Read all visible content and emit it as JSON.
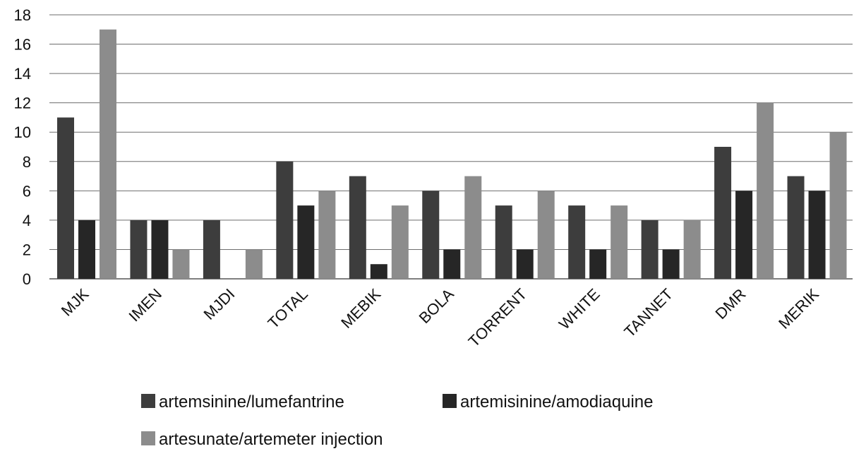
{
  "chart_data": {
    "type": "bar",
    "title": "",
    "xlabel": "",
    "ylabel": "",
    "ylim": [
      0,
      18
    ],
    "yticks": [
      0,
      2,
      4,
      6,
      8,
      10,
      12,
      14,
      16,
      18
    ],
    "grid": true,
    "legend_position": "bottom",
    "categories": [
      "MJK",
      "IMEN",
      "MJDI",
      "TOTAL",
      "MEBIK",
      "BOLA",
      "TORRENT",
      "WHITE",
      "TANNET",
      "DMR",
      "MERIK"
    ],
    "series": [
      {
        "name": "artemsinine/lumefantrine",
        "color": "#3d3d3d",
        "values": [
          11,
          4,
          4,
          8,
          7,
          6,
          5,
          5,
          4,
          9,
          7
        ]
      },
      {
        "name": "artemisinine/amodiaquine",
        "color": "#262626",
        "values": [
          4,
          4,
          0,
          5,
          1,
          2,
          2,
          2,
          2,
          6,
          6
        ]
      },
      {
        "name": "artesunate/artemeter injection",
        "color": "#8c8c8c",
        "values": [
          17,
          2,
          2,
          6,
          5,
          7,
          6,
          5,
          4,
          12,
          10
        ]
      }
    ]
  }
}
